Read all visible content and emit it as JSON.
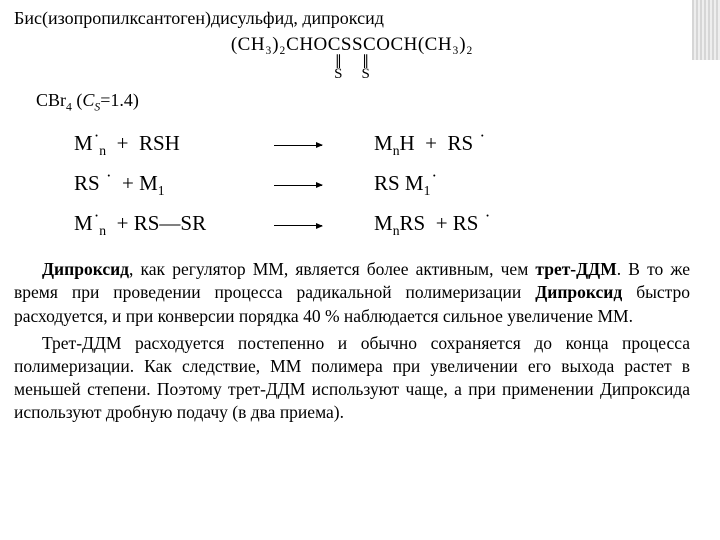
{
  "title": "Бис(изопропилксантоген)дисульфид, дипроксид",
  "structural_formula": {
    "line1": "(CH₃)₂CHOCSSCOCH(CH₃)₂",
    "below_left": "S",
    "below_right": "S"
  },
  "cs_line_prefix": "CBr",
  "cs_line_sub": "4",
  "cs_line_mid": " (",
  "cs_line_var": "C",
  "cs_line_var_sub": "S",
  "cs_line_after": "=1.4)",
  "reactions": [
    {
      "left_html": "M<span class='radical'>·</span><sub>n</sub>&nbsp;&nbsp;+&nbsp;&nbsp;RSH",
      "right_html": "M<sub>n</sub>H&nbsp;&nbsp;+&nbsp;&nbsp;RS&nbsp;<span class='radical'>·</span>"
    },
    {
      "left_html": "RS&nbsp;<span class='radical'>·</span>&nbsp;&nbsp;+ M<sub>1</sub>",
      "right_html": "RS M<sub>1</sub><span class='radical'>·</span>"
    },
    {
      "left_html": "M<span class='radical'>·</span><sub>n</sub>&nbsp;&nbsp;+ RS—SR",
      "right_html": "M<sub>n</sub>RS&nbsp;&nbsp;+ RS&nbsp;<span class='radical'>·</span>"
    }
  ],
  "paragraphs": [
    "<span class='bold'>Дипроксид</span>, как регулятор ММ, является более активным, чем <span class='bold'>трет-ДДМ</span>. В то же время при проведении процесса радикальной полимеризации <span class='bold'>Дипроксид</span> быстро расходуется, и при конверсии порядка 40&nbsp;% наблюдается сильное увеличение ММ.",
    "Трет-ДДМ расходуется постепенно и обычно сохраняется до конца процесса полимеризации. Как следствие, ММ полимера при увеличении его выхода растет в меньшей степени. Поэтому трет-ДДМ используют чаще, а при применении Дипроксида используют дробную подачу (в два приема)."
  ],
  "colors": {
    "text": "#000000",
    "background": "#ffffff",
    "stripe_dark": "#8a8a8a",
    "stripe_light": "#d0d0d0"
  },
  "typography": {
    "family": "Times New Roman",
    "title_size_pt": 14,
    "formula_size_pt": 15,
    "rxn_size_pt": 16,
    "body_size_pt": 13
  }
}
